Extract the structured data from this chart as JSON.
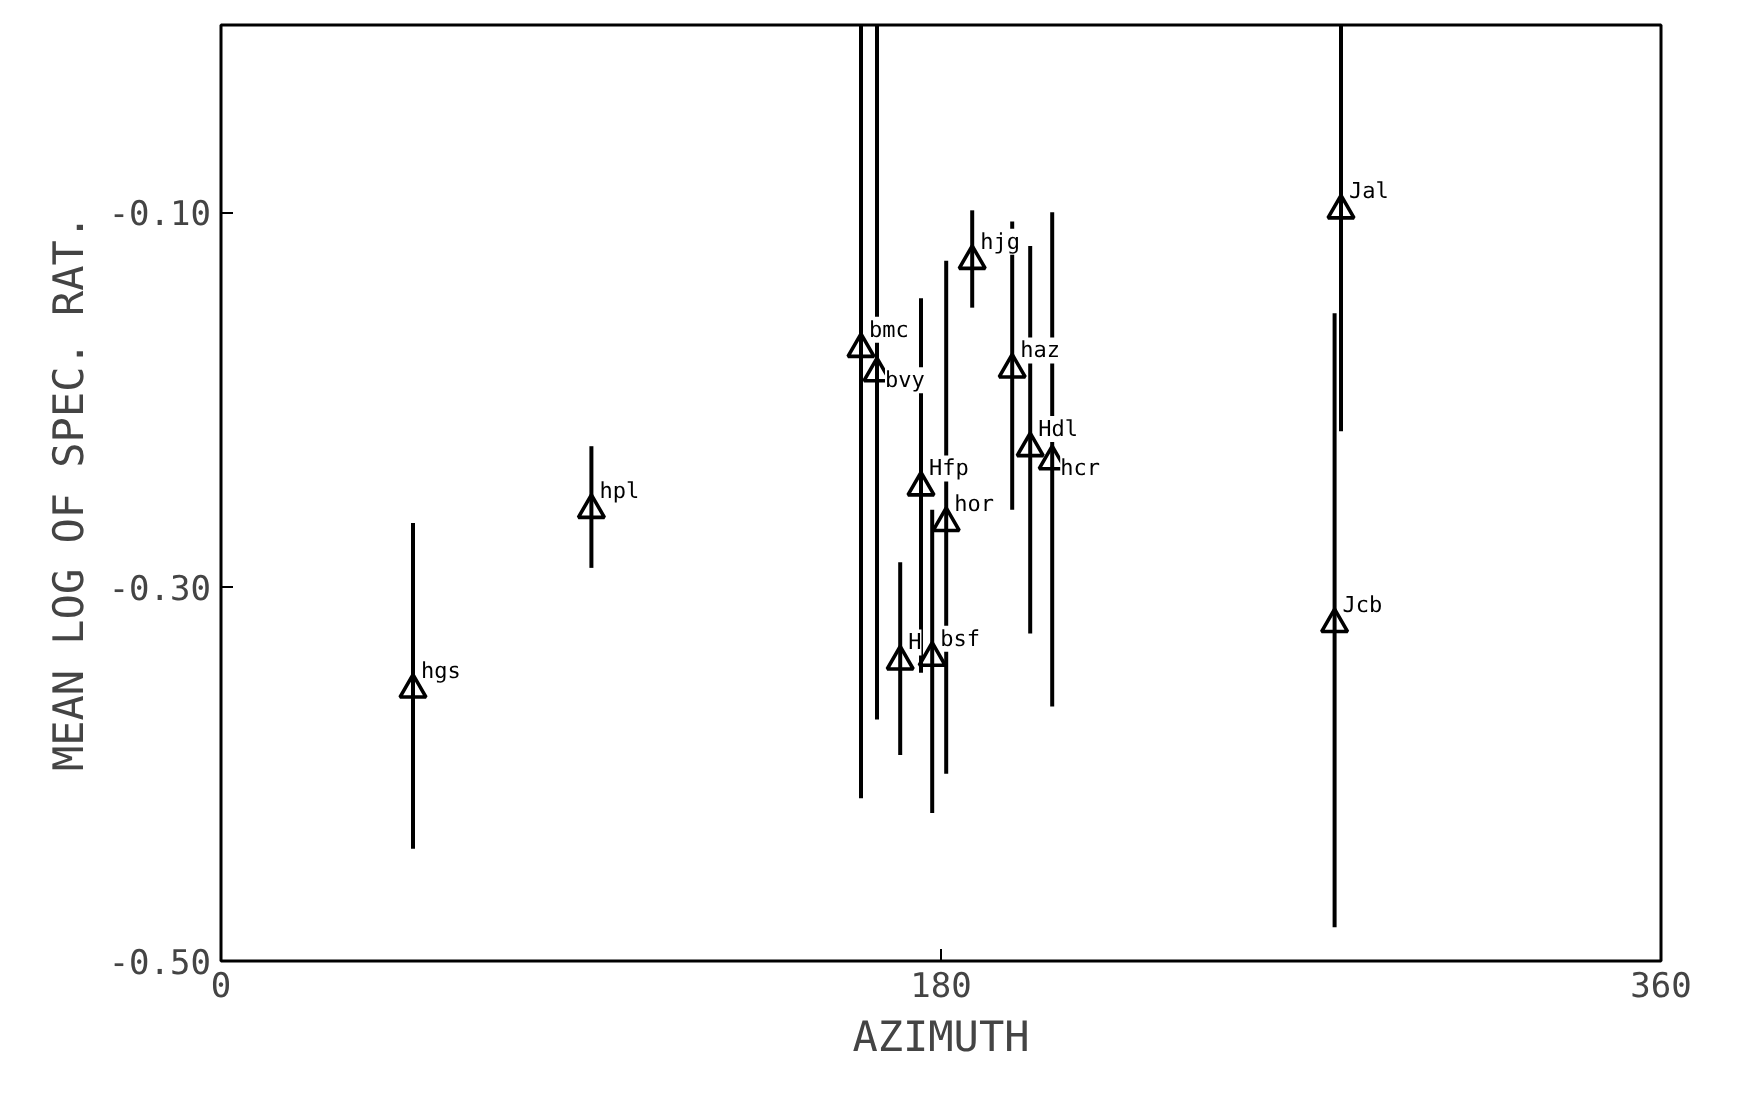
{
  "chart_data": {
    "type": "scatter",
    "xlabel": "AZIMUTH",
    "ylabel": "MEAN LOG OF SPEC. RAT.",
    "x": [
      48,
      92.6,
      160,
      164,
      169.8,
      175,
      177.8,
      181.3,
      187.8,
      197.8,
      202.3,
      207.8,
      278.4,
      280
    ],
    "series": [
      {
        "color": "#000000",
        "values": [
          -0.355,
          -0.259,
          -0.173,
          -0.186,
          -0.34,
          -0.247,
          -0.338,
          -0.266,
          -0.126,
          -0.184,
          -0.226,
          -0.233,
          -0.32,
          -0.099
        ],
        "errors": [
          [
            -0.44,
            -0.266
          ],
          [
            -0.29,
            -0.225
          ],
          [
            -0.413,
            0.0
          ],
          [
            -0.371,
            0.0
          ],
          [
            -0.39,
            -0.287
          ],
          [
            -0.346,
            -0.146
          ],
          [
            -0.421,
            -0.259
          ],
          [
            -0.4,
            -0.126
          ],
          [
            -0.151,
            -0.099
          ],
          [
            -0.259,
            -0.105
          ],
          [
            -0.325,
            -0.118
          ],
          [
            -0.364,
            -0.1
          ],
          [
            -0.482,
            -0.154
          ],
          [
            -0.217,
            0.0
          ]
        ]
      }
    ],
    "annotations": [
      {
        "text": "hgs",
        "x": 48,
        "y": -0.355
      },
      {
        "text": "hpl",
        "x": 92.6,
        "y": -0.259
      },
      {
        "text": "bmc",
        "x": 160,
        "y": -0.173
      },
      {
        "text": "bvy",
        "x": 164,
        "y": -0.186
      },
      {
        "text": "H",
        "x": 169.8,
        "y": -0.34
      },
      {
        "text": "Hfp",
        "x": 175,
        "y": -0.247
      },
      {
        "text": "bsf",
        "x": 177.8,
        "y": -0.338
      },
      {
        "text": "hor",
        "x": 181.3,
        "y": -0.266
      },
      {
        "text": "hjg",
        "x": 187.8,
        "y": -0.126
      },
      {
        "text": "haz",
        "x": 197.8,
        "y": -0.184
      },
      {
        "text": "Hdl",
        "x": 202.3,
        "y": -0.226
      },
      {
        "text": "hcr",
        "x": 207.8,
        "y": -0.233
      },
      {
        "text": "Jcb",
        "x": 278.4,
        "y": -0.32
      },
      {
        "text": "Jal",
        "x": 280,
        "y": -0.099
      }
    ],
    "xlim": [
      0,
      360
    ],
    "xticks": [
      0,
      180,
      360
    ],
    "ylim": [
      -0.5,
      0.0
    ],
    "yticks": [
      {
        "value": -0.5,
        "label": "-0.50"
      },
      {
        "value": -0.3,
        "label": "-0.30"
      },
      {
        "value": -0.1,
        "label": "-0.10"
      }
    ],
    "marker": "triangle",
    "grid": false
  }
}
